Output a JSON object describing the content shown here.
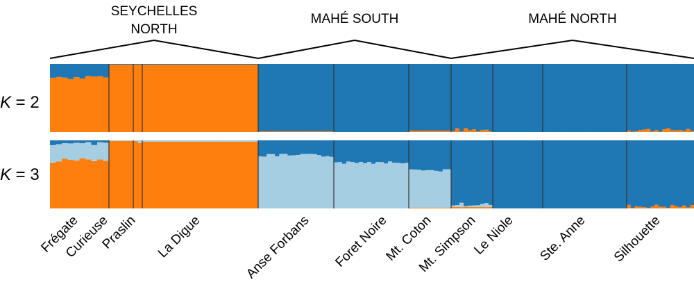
{
  "chart_data": {
    "type": "bar",
    "colors": {
      "orange": "#ff7f0e",
      "blue": "#1f77b4",
      "light_blue": "#a6cee3"
    },
    "groups": [
      {
        "label_lines": [
          "SEYCHELLES",
          "NORTH"
        ],
        "populations": [
          "Frégate",
          "Curieuse",
          "Praslin",
          "La Digue"
        ]
      },
      {
        "label_lines": [
          "MAHÉ SOUTH"
        ],
        "populations": [
          "Anse Forbans",
          "Foret Noire",
          "Mt. Coton"
        ]
      },
      {
        "label_lines": [
          "MAHÉ NORTH"
        ],
        "populations": [
          "Mt. Simpson",
          "Le Niole",
          "Ste. Anne",
          "Silhouette"
        ]
      }
    ],
    "populations": [
      {
        "name": "Frégate",
        "n": 10,
        "K2": {
          "orange": 0.8,
          "blue": 0.2
        },
        "K3": {
          "orange": 0.7,
          "light_blue": 0.25,
          "blue": 0.05
        }
      },
      {
        "name": "Curieuse",
        "n": 5,
        "K2": {
          "orange": 0.99,
          "blue": 0.01
        },
        "K3": {
          "orange": 0.99,
          "light_blue": 0.01,
          "blue": 0.0
        }
      },
      {
        "name": "Praslin",
        "n": 2,
        "K2": {
          "orange": 0.99,
          "blue": 0.01
        },
        "K3": {
          "orange": 0.97,
          "light_blue": 0.03,
          "blue": 0.0
        }
      },
      {
        "name": "La Digue",
        "n": 20,
        "K2": {
          "orange": 0.99,
          "blue": 0.01
        },
        "K3": {
          "orange": 0.98,
          "light_blue": 0.02,
          "blue": 0.0
        }
      },
      {
        "name": "Anse Forbans",
        "n": 18,
        "K2": {
          "orange": 0.01,
          "blue": 0.99
        },
        "K3": {
          "orange": 0.0,
          "light_blue": 0.78,
          "blue": 0.22
        }
      },
      {
        "name": "Foret Noire",
        "n": 18,
        "K2": {
          "orange": 0.0,
          "blue": 1.0
        },
        "K3": {
          "orange": 0.0,
          "light_blue": 0.68,
          "blue": 0.32
        }
      },
      {
        "name": "Mt. Coton",
        "n": 10,
        "K2": {
          "orange": 0.02,
          "blue": 0.98
        },
        "K3": {
          "orange": 0.01,
          "light_blue": 0.55,
          "blue": 0.44
        }
      },
      {
        "name": "Mt. Simpson",
        "n": 10,
        "K2": {
          "orange": 0.03,
          "blue": 0.97
        },
        "K3": {
          "orange": 0.02,
          "light_blue": 0.04,
          "blue": 0.94
        }
      },
      {
        "name": "Le Niole",
        "n": 12,
        "K2": {
          "orange": 0.0,
          "blue": 1.0
        },
        "K3": {
          "orange": 0.0,
          "light_blue": 0.0,
          "blue": 1.0
        }
      },
      {
        "name": "Ste. Anne",
        "n": 20,
        "K2": {
          "orange": 0.0,
          "blue": 1.0
        },
        "K3": {
          "orange": 0.0,
          "light_blue": 0.0,
          "blue": 1.0
        }
      },
      {
        "name": "Silhouette",
        "n": 17,
        "K2": {
          "orange": 0.03,
          "blue": 0.97
        },
        "K3": {
          "orange": 0.03,
          "light_blue": 0.0,
          "blue": 0.97
        }
      }
    ],
    "rows": [
      {
        "k_italic": "K",
        "k_rest": " = 2",
        "key": "K2",
        "order": [
          "orange",
          "blue"
        ]
      },
      {
        "k_italic": "K",
        "k_rest": " = 3",
        "key": "K3",
        "order": [
          "orange",
          "light_blue",
          "blue"
        ]
      }
    ],
    "ylim": [
      0,
      1
    ],
    "grid": false,
    "legend": "none"
  }
}
